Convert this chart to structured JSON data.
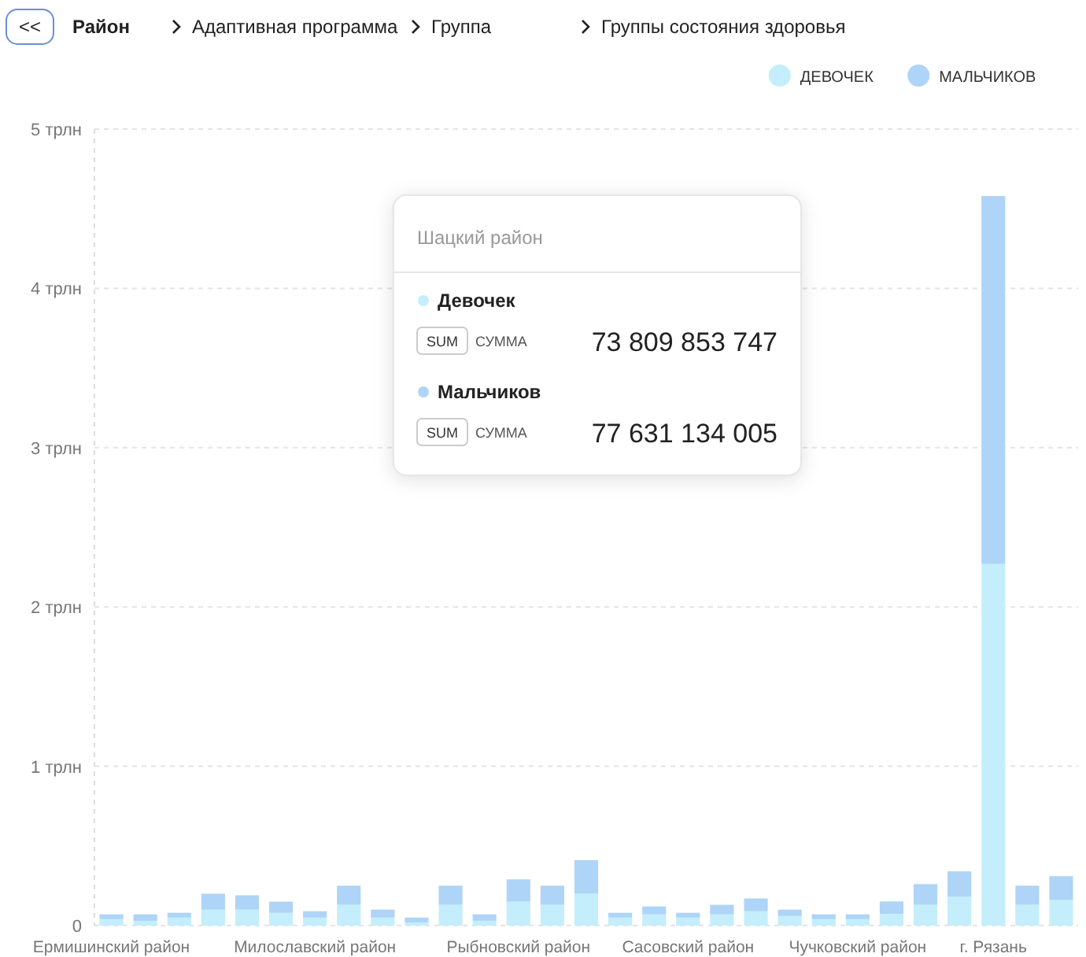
{
  "chart_data": {
    "type": "bar",
    "stacked": true,
    "categories": [
      "Ермишинский район",
      null,
      null,
      null,
      null,
      null,
      "Милославский район",
      null,
      null,
      null,
      null,
      null,
      "Рыбновский район",
      null,
      null,
      null,
      null,
      "Сасовский район",
      null,
      null,
      null,
      null,
      "Чучковский район",
      null,
      null,
      null,
      "г. Рязань",
      null,
      null
    ],
    "series": [
      {
        "name": "ДЕВОЧЕК",
        "color": "#c4eefb",
        "values": [
          0.04,
          0.03,
          0.05,
          0.1,
          0.1,
          0.08,
          0.05,
          0.13,
          0.05,
          0.02,
          0.13,
          0.03,
          0.15,
          0.13,
          0.2,
          0.05,
          0.07,
          0.05,
          0.07,
          0.09,
          0.06,
          0.04,
          0.04,
          0.0738,
          0.13,
          0.18,
          2.27,
          0.13,
          0.16
        ]
      },
      {
        "name": "МАЛЬЧИКОВ",
        "color": "#aed4f7",
        "values": [
          0.03,
          0.04,
          0.03,
          0.1,
          0.09,
          0.07,
          0.04,
          0.12,
          0.05,
          0.03,
          0.12,
          0.04,
          0.14,
          0.12,
          0.21,
          0.03,
          0.05,
          0.03,
          0.06,
          0.08,
          0.04,
          0.03,
          0.03,
          0.0776,
          0.13,
          0.16,
          2.31,
          0.12,
          0.15
        ]
      }
    ],
    "ylim": [
      0,
      5
    ],
    "yticks": [
      0,
      {
        "value": 1,
        "label": "1 трлн"
      },
      {
        "value": 2,
        "label": "2 трлн"
      },
      {
        "value": 3,
        "label": "3 трлн"
      },
      {
        "value": 4,
        "label": "4 трлн"
      },
      {
        "value": 5,
        "label": "5 трлн"
      }
    ],
    "grid": "y",
    "legend": "top right",
    "annotations": [
      "<<",
      "Район",
      "Адаптивная программа",
      "Группа",
      "Группы состояния здоровья",
      "Шацкий район",
      "Девочек",
      "SUM",
      "СУММА",
      "73 809 853 747",
      "Мальчиков",
      "SUM",
      "СУММА",
      "77 631 134 005"
    ]
  }
}
